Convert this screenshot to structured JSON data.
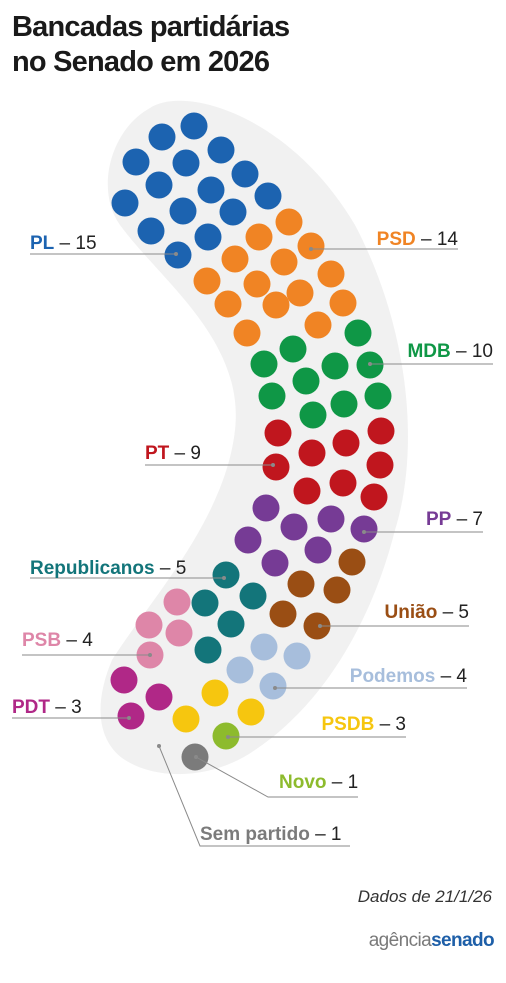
{
  "title": {
    "line1": "Bancadas partidárias",
    "line2": "no Senado em 2026"
  },
  "chart_data": {
    "type": "parliament",
    "total": 81,
    "parties": [
      {
        "name": "PL",
        "seats": 15,
        "color": "#1c63b0",
        "seats_text": "15"
      },
      {
        "name": "PSD",
        "seats": 14,
        "color": "#f08424",
        "seats_text": "14"
      },
      {
        "name": "MDB",
        "seats": 10,
        "color": "#0f9746",
        "seats_text": "10"
      },
      {
        "name": "PT",
        "seats": 9,
        "color": "#c0161e",
        "seats_text": "9"
      },
      {
        "name": "PP",
        "seats": 7,
        "color": "#763b95",
        "seats_text": "7"
      },
      {
        "name": "Republicanos",
        "seats": 5,
        "color": "#13757a",
        "seats_text": "5"
      },
      {
        "name": "União",
        "seats": 5,
        "color": "#9a4e14",
        "seats_text": "5"
      },
      {
        "name": "PSB",
        "seats": 4,
        "color": "#de86a8",
        "seats_text": "4"
      },
      {
        "name": "Podemos",
        "seats": 4,
        "color": "#a7bedc",
        "seats_text": "4"
      },
      {
        "name": "PDT",
        "seats": 3,
        "color": "#b02887",
        "seats_text": "3"
      },
      {
        "name": "PSDB",
        "seats": 3,
        "color": "#f6c60f",
        "seats_text": "3"
      },
      {
        "name": "Novo",
        "seats": 1,
        "color": "#8dbb2d",
        "seats_text": "1"
      },
      {
        "name": "Sem partido",
        "seats": 1,
        "color": "#7b7b7b",
        "seats_text": "1"
      }
    ]
  },
  "footer": {
    "credit": "Dados de 21/1/26",
    "logo_agencia": "agência",
    "logo_senado": "senado"
  }
}
